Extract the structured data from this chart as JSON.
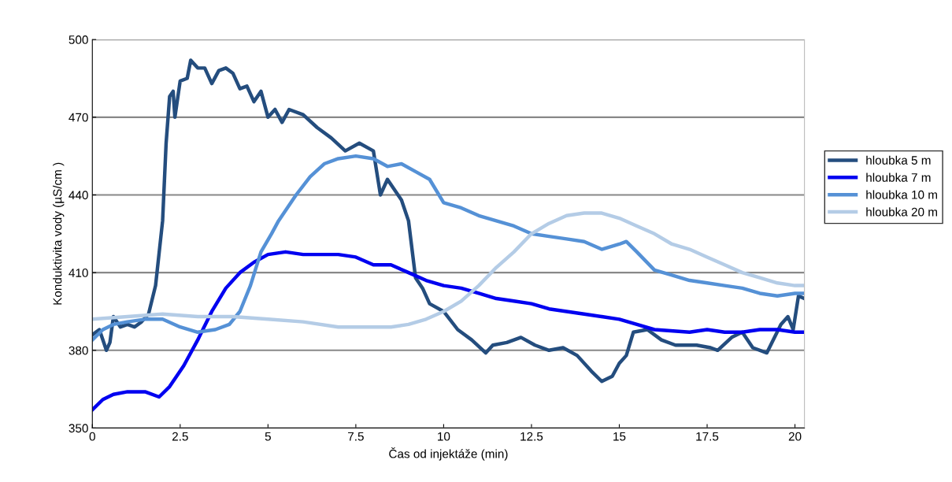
{
  "chart_data": {
    "type": "line",
    "xlabel": "Čas od injektáže (min)",
    "ylabel": "Konduktivita vody (µS/cm )",
    "xlim": [
      0,
      20.27
    ],
    "xticks": [
      0,
      2.5,
      5,
      7.5,
      10,
      12.5,
      15,
      17.5,
      20
    ],
    "ylim": [
      350,
      500
    ],
    "yticks": [
      350,
      380,
      410,
      440,
      470,
      500
    ],
    "grid": "y",
    "legend": "right",
    "marker": "none",
    "line_style": "solid",
    "series": [
      {
        "name": "hloubka 5 m",
        "color": "#244d7e",
        "x": [
          0,
          0.2,
          0.4,
          0.5,
          0.6,
          0.8,
          1.0,
          1.2,
          1.4,
          1.6,
          1.8,
          2.0,
          2.1,
          2.2,
          2.3,
          2.35,
          2.5,
          2.7,
          2.8,
          3.0,
          3.2,
          3.4,
          3.6,
          3.8,
          4.0,
          4.2,
          4.4,
          4.6,
          4.8,
          5.0,
          5.2,
          5.4,
          5.6,
          6.0,
          6.4,
          6.8,
          7.2,
          7.6,
          8.0,
          8.2,
          8.4,
          8.8,
          9.0,
          9.2,
          9.4,
          9.6,
          10.0,
          10.4,
          10.8,
          11.2,
          11.4,
          11.8,
          12.2,
          12.6,
          13.0,
          13.4,
          13.8,
          14.2,
          14.5,
          14.8,
          15.0,
          15.2,
          15.4,
          15.8,
          16.2,
          16.6,
          17.2,
          17.6,
          17.8,
          18.2,
          18.5,
          18.8,
          19.2,
          19.6,
          19.8,
          19.95,
          20.1,
          20.27
        ],
        "values": [
          386,
          388,
          380,
          383,
          393,
          389,
          390,
          389,
          391,
          394,
          405,
          430,
          460,
          478,
          480,
          470,
          484,
          485,
          492,
          489,
          489,
          483,
          488,
          489,
          487,
          481,
          482,
          476,
          480,
          470,
          473,
          468,
          473,
          471,
          466,
          462,
          457,
          460,
          457,
          440,
          446,
          438,
          430,
          408,
          404,
          398,
          395,
          388,
          384,
          379,
          382,
          383,
          385,
          382,
          380,
          381,
          378,
          372,
          368,
          370,
          375,
          378,
          387,
          388,
          384,
          382,
          382,
          381,
          380,
          385,
          387,
          381,
          379,
          390,
          393,
          388,
          401,
          400
        ]
      },
      {
        "name": "hloubka 7 m",
        "color": "#0000f0",
        "x": [
          0,
          0.3,
          0.6,
          1.0,
          1.5,
          1.9,
          2.2,
          2.6,
          3.0,
          3.4,
          3.8,
          4.2,
          4.6,
          5.0,
          5.5,
          6,
          7,
          7.5,
          8,
          8.5,
          9,
          9.5,
          10,
          10.5,
          11,
          11.5,
          12,
          12.5,
          13,
          13.5,
          14,
          14.5,
          15,
          15.5,
          16,
          17,
          17.5,
          18,
          18.5,
          19,
          19.5,
          20,
          20.27
        ],
        "values": [
          357,
          361,
          363,
          364,
          364,
          362,
          366,
          374,
          384,
          395,
          404,
          410,
          414,
          417,
          418,
          417,
          417,
          416,
          413,
          413,
          410,
          407,
          405,
          404,
          402,
          400,
          399,
          398,
          396,
          395,
          394,
          393,
          392,
          390,
          388,
          387,
          388,
          387,
          387,
          388,
          388,
          387,
          387
        ]
      },
      {
        "name": "hloubka 10 m",
        "color": "#5591d6",
        "x": [
          0,
          0.3,
          0.6,
          1,
          1.5,
          2,
          2.5,
          3,
          3.5,
          3.9,
          4.2,
          4.5,
          4.8,
          5.1,
          5.3,
          5.8,
          6.2,
          6.6,
          7.0,
          7.5,
          8,
          8.4,
          8.8,
          9.2,
          9.6,
          10,
          10.5,
          11,
          11.5,
          12,
          12.5,
          13,
          13.5,
          14,
          14.5,
          15,
          15.2,
          15.5,
          16,
          16.5,
          17,
          17.5,
          18,
          18.5,
          19,
          19.5,
          20,
          20.27
        ],
        "values": [
          384,
          388,
          390,
          391,
          392,
          392,
          389,
          387,
          388,
          390,
          395,
          405,
          418,
          425,
          430,
          440,
          447,
          452,
          454,
          455,
          454,
          451,
          452,
          449,
          446,
          437,
          435,
          432,
          430,
          428,
          425,
          424,
          423,
          422,
          419,
          421,
          422,
          418,
          411,
          409,
          407,
          406,
          405,
          404,
          402,
          401,
          402,
          402
        ]
      },
      {
        "name": "hloubka 20 m",
        "color": "#b4cce6",
        "x": [
          0,
          1,
          2,
          3,
          4,
          5,
          6,
          7,
          8,
          8.5,
          9,
          9.5,
          10,
          10.5,
          11,
          11.5,
          12,
          12.5,
          13,
          13.5,
          14,
          14.5,
          15,
          15.5,
          16,
          16.5,
          17,
          17.5,
          18,
          18.5,
          19,
          19.5,
          20,
          20.27
        ],
        "values": [
          392,
          393,
          394,
          393,
          393,
          392,
          391,
          389,
          389,
          389,
          390,
          392,
          395,
          399,
          405,
          412,
          418,
          425,
          429,
          432,
          433,
          433,
          431,
          428,
          425,
          421,
          419,
          416,
          413,
          410,
          408,
          406,
          405,
          405
        ]
      }
    ]
  }
}
